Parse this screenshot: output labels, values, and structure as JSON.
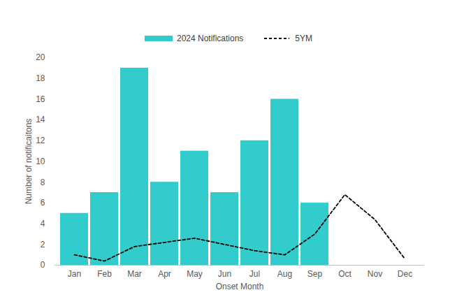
{
  "chart_data": {
    "type": "bar",
    "categories": [
      "Jan",
      "Feb",
      "Mar",
      "Apr",
      "May",
      "Jun",
      "Jul",
      "Aug",
      "Sep",
      "Oct",
      "Nov",
      "Dec"
    ],
    "series": [
      {
        "name": "2024 Notifications",
        "type": "bar",
        "color": "#33CCCC",
        "values": [
          5,
          7,
          19,
          8,
          11,
          7,
          12,
          16,
          6,
          null,
          null,
          null
        ]
      },
      {
        "name": "5YM",
        "type": "line",
        "color": "#000000",
        "line_style": "dashed",
        "values": [
          1.0,
          0.4,
          1.8,
          2.2,
          2.6,
          2.0,
          1.4,
          1.0,
          3.0,
          6.8,
          4.4,
          0.6
        ]
      }
    ],
    "x_label": "Onset Month",
    "y_label": "Number of notificaitons",
    "ylim": [
      0,
      20
    ],
    "yticks": [
      0,
      2,
      4,
      6,
      8,
      10,
      12,
      14,
      16,
      18,
      20
    ],
    "grid": false,
    "legend": "top"
  }
}
